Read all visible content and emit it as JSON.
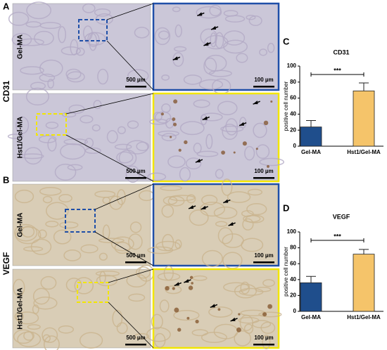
{
  "panels": [
    {
      "label": "A",
      "marker": "CD31",
      "rows": [
        "Gel-MA",
        "Hst1/Gel-MA"
      ],
      "scale_bars": [
        "500 µm",
        "100 µm",
        "500 µm",
        "100 µm"
      ]
    },
    {
      "label": "B",
      "marker": "VEGF",
      "rows": [
        "Gel-MA",
        "Hst1/Gel-MA"
      ],
      "scale_bars": [
        "500 µm",
        "100 µm",
        "500 µm",
        "100 µm"
      ]
    }
  ],
  "chart_data": [
    {
      "type": "bar",
      "panel": "C",
      "title": "CD31",
      "ylabel": "positive cell number",
      "categories": [
        "Gel-MA",
        "Hst1/Gel-MA"
      ],
      "values": [
        24,
        69
      ],
      "errors": [
        8,
        10
      ],
      "colors": [
        "#1f4e8c",
        "#f5c46a"
      ],
      "ylim": [
        0,
        100
      ],
      "yticks": [
        0,
        20,
        40,
        60,
        80,
        100
      ],
      "significance": "***"
    },
    {
      "type": "bar",
      "panel": "D",
      "title": "VEGF",
      "ylabel": "positive cell number",
      "categories": [
        "Gel-MA",
        "Hst1/Gel-MA"
      ],
      "values": [
        36,
        72
      ],
      "errors": [
        8,
        6
      ],
      "colors": [
        "#1f4e8c",
        "#f5c46a"
      ],
      "ylim": [
        0,
        100
      ],
      "yticks": [
        0,
        20,
        40,
        60,
        80,
        100
      ],
      "significance": "***"
    }
  ]
}
